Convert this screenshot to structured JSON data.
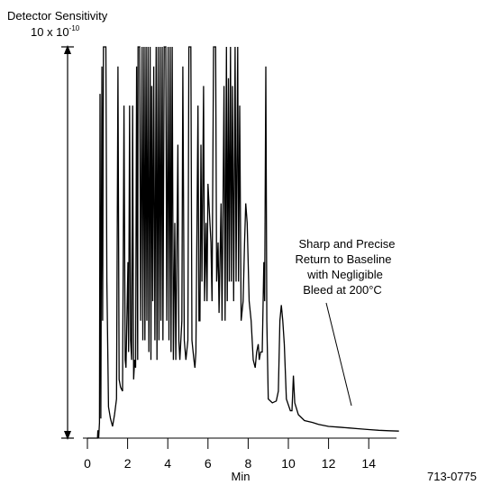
{
  "chart_data": {
    "type": "line",
    "title": "",
    "xlabel": "Min",
    "ylabel": "",
    "xlim": [
      0,
      15.5
    ],
    "ylim": [
      0,
      1
    ],
    "x_ticks": [
      "0",
      "2",
      "4",
      "6",
      "8",
      "10",
      "12",
      "14"
    ],
    "x_tick_values": [
      0,
      2,
      4,
      6,
      8,
      10,
      12,
      14
    ],
    "grid": false,
    "legend": "none",
    "line_color": "#000000",
    "sensitivity_label": "Detector Sensitivity",
    "sensitivity_value_base": "10 x 10",
    "sensitivity_value_exp": "-10",
    "annotation_lines": [
      "Sharp and Precise",
      "Return to Baseline",
      "with Negligible",
      "Bleed at 200°C"
    ],
    "figure_code": "713-0775",
    "series": [
      {
        "points": [
          [
            0.0,
            0.0
          ],
          [
            0.5,
            0.0
          ],
          [
            0.52,
            0.02
          ],
          [
            0.56,
            0.0
          ],
          [
            0.6,
            0.04
          ],
          [
            0.63,
            0.88
          ],
          [
            0.67,
            0.05
          ],
          [
            0.72,
            0.95
          ],
          [
            0.76,
            0.3
          ],
          [
            0.8,
            1.0
          ],
          [
            0.92,
            1.0
          ],
          [
            0.97,
            0.4
          ],
          [
            1.05,
            0.08
          ],
          [
            1.15,
            0.05
          ],
          [
            1.25,
            0.03
          ],
          [
            1.35,
            0.06
          ],
          [
            1.45,
            0.1
          ],
          [
            1.52,
            0.95
          ],
          [
            1.58,
            0.15
          ],
          [
            1.65,
            0.13
          ],
          [
            1.75,
            0.12
          ],
          [
            1.82,
            0.85
          ],
          [
            1.88,
            0.2
          ],
          [
            1.92,
            0.18
          ],
          [
            1.98,
            0.35
          ],
          [
            2.02,
            0.45
          ],
          [
            2.05,
            0.22
          ],
          [
            2.1,
            0.85
          ],
          [
            2.15,
            0.25
          ],
          [
            2.2,
            0.2
          ],
          [
            2.25,
            0.85
          ],
          [
            2.3,
            0.15
          ],
          [
            2.35,
            0.2
          ],
          [
            2.4,
            0.18
          ],
          [
            2.45,
            0.95
          ],
          [
            2.5,
            0.2
          ],
          [
            2.52,
            1.0
          ],
          [
            2.6,
            1.0
          ],
          [
            2.65,
            0.3
          ],
          [
            2.72,
            1.0
          ],
          [
            2.76,
            0.25
          ],
          [
            2.82,
            1.0
          ],
          [
            2.86,
            0.25
          ],
          [
            2.92,
            1.0
          ],
          [
            2.96,
            0.3
          ],
          [
            3.02,
            1.0
          ],
          [
            3.06,
            0.22
          ],
          [
            3.12,
            1.0
          ],
          [
            3.16,
            0.2
          ],
          [
            3.2,
            0.9
          ],
          [
            3.25,
            0.35
          ],
          [
            3.3,
            0.95
          ],
          [
            3.36,
            0.25
          ],
          [
            3.42,
            1.0
          ],
          [
            3.46,
            0.2
          ],
          [
            3.52,
            1.0
          ],
          [
            3.56,
            0.25
          ],
          [
            3.62,
            1.0
          ],
          [
            3.66,
            0.3
          ],
          [
            3.72,
            1.0
          ],
          [
            3.76,
            0.25
          ],
          [
            3.82,
            1.0
          ],
          [
            3.9,
            1.0
          ],
          [
            3.95,
            0.3
          ],
          [
            4.02,
            1.0
          ],
          [
            4.06,
            0.25
          ],
          [
            4.12,
            1.0
          ],
          [
            4.16,
            0.22
          ],
          [
            4.22,
            1.0
          ],
          [
            4.28,
            0.2
          ],
          [
            4.35,
            0.55
          ],
          [
            4.4,
            0.2
          ],
          [
            4.5,
            0.75
          ],
          [
            4.55,
            0.25
          ],
          [
            4.6,
            0.2
          ],
          [
            4.7,
            0.3
          ],
          [
            4.75,
            0.95
          ],
          [
            4.82,
            0.25
          ],
          [
            4.9,
            0.2
          ],
          [
            5.0,
            0.25
          ],
          [
            5.05,
            1.0
          ],
          [
            5.15,
            1.0
          ],
          [
            5.2,
            0.25
          ],
          [
            5.3,
            0.2
          ],
          [
            5.35,
            0.18
          ],
          [
            5.4,
            0.22
          ],
          [
            5.5,
            0.85
          ],
          [
            5.55,
            0.3
          ],
          [
            5.6,
            0.3
          ],
          [
            5.65,
            0.75
          ],
          [
            5.7,
            0.4
          ],
          [
            5.78,
            0.9
          ],
          [
            5.83,
            0.35
          ],
          [
            5.9,
            0.55
          ],
          [
            5.95,
            0.35
          ],
          [
            6.0,
            0.65
          ],
          [
            6.05,
            0.6
          ],
          [
            6.1,
            0.55
          ],
          [
            6.15,
            0.5
          ],
          [
            6.2,
            0.35
          ],
          [
            6.28,
            1.0
          ],
          [
            6.38,
            1.0
          ],
          [
            6.43,
            0.4
          ],
          [
            6.5,
            0.5
          ],
          [
            6.55,
            0.32
          ],
          [
            6.65,
            0.6
          ],
          [
            6.7,
            0.3
          ],
          [
            6.8,
            0.9
          ],
          [
            6.85,
            0.3
          ],
          [
            6.92,
            1.0
          ],
          [
            6.96,
            0.35
          ],
          [
            7.02,
            0.92
          ],
          [
            7.06,
            0.4
          ],
          [
            7.12,
            1.0
          ],
          [
            7.16,
            0.4
          ],
          [
            7.22,
            0.9
          ],
          [
            7.28,
            0.35
          ],
          [
            7.35,
            1.0
          ],
          [
            7.4,
            0.4
          ],
          [
            7.48,
            1.0
          ],
          [
            7.52,
            0.4
          ],
          [
            7.58,
            0.85
          ],
          [
            7.65,
            0.3
          ],
          [
            7.75,
            0.35
          ],
          [
            7.82,
            0.5
          ],
          [
            7.88,
            0.6
          ],
          [
            7.95,
            0.55
          ],
          [
            8.0,
            0.45
          ],
          [
            8.05,
            0.35
          ],
          [
            8.15,
            0.3
          ],
          [
            8.25,
            0.2
          ],
          [
            8.35,
            0.18
          ],
          [
            8.42,
            0.22
          ],
          [
            8.5,
            0.24
          ],
          [
            8.55,
            0.2
          ],
          [
            8.62,
            0.22
          ],
          [
            8.7,
            0.22
          ],
          [
            8.78,
            0.45
          ],
          [
            8.82,
            0.35
          ],
          [
            8.88,
            0.95
          ],
          [
            8.93,
            0.3
          ],
          [
            9.0,
            0.1
          ],
          [
            9.2,
            0.09
          ],
          [
            9.4,
            0.095
          ],
          [
            9.5,
            0.12
          ],
          [
            9.58,
            0.3
          ],
          [
            9.65,
            0.34
          ],
          [
            9.72,
            0.3
          ],
          [
            9.8,
            0.24
          ],
          [
            9.9,
            0.1
          ],
          [
            10.1,
            0.07
          ],
          [
            10.18,
            0.07
          ],
          [
            10.25,
            0.16
          ],
          [
            10.32,
            0.09
          ],
          [
            10.5,
            0.06
          ],
          [
            10.8,
            0.045
          ],
          [
            11.2,
            0.04
          ],
          [
            11.5,
            0.035
          ],
          [
            12.0,
            0.03
          ],
          [
            12.5,
            0.028
          ],
          [
            13.0,
            0.026
          ],
          [
            13.5,
            0.024
          ],
          [
            14.0,
            0.022
          ],
          [
            14.5,
            0.02
          ],
          [
            15.0,
            0.019
          ],
          [
            15.5,
            0.018
          ]
        ]
      }
    ]
  }
}
